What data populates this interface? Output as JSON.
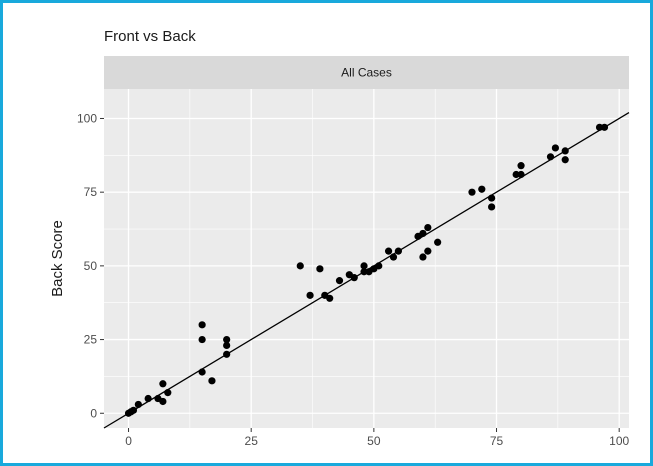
{
  "chart_data": {
    "type": "scatter",
    "title": "Front vs Back",
    "facet_label": "All Cases",
    "xlabel": "",
    "ylabel": "Back Score",
    "xlim": [
      -5,
      102
    ],
    "ylim": [
      -5,
      110
    ],
    "x_ticks": [
      0,
      25,
      50,
      75,
      100
    ],
    "y_ticks": [
      0,
      25,
      50,
      75,
      100
    ],
    "x_tick_labels": [
      "0",
      "25",
      "50",
      "75",
      "100"
    ],
    "y_tick_labels": [
      "0",
      "25",
      "50",
      "75",
      "100"
    ],
    "grid": true,
    "reference_line": {
      "slope": 1,
      "intercept": 0
    },
    "points": [
      [
        0,
        0
      ],
      [
        0.5,
        0.5
      ],
      [
        1,
        1
      ],
      [
        2,
        3
      ],
      [
        4,
        5
      ],
      [
        6,
        5
      ],
      [
        7,
        4
      ],
      [
        7,
        10
      ],
      [
        8,
        7
      ],
      [
        15,
        14
      ],
      [
        15,
        25
      ],
      [
        15,
        30
      ],
      [
        17,
        11
      ],
      [
        20,
        20
      ],
      [
        20,
        23
      ],
      [
        20,
        25
      ],
      [
        35,
        50
      ],
      [
        37,
        40
      ],
      [
        39,
        49
      ],
      [
        40,
        40
      ],
      [
        41,
        39
      ],
      [
        43,
        45
      ],
      [
        45,
        47
      ],
      [
        46,
        46
      ],
      [
        48,
        48
      ],
      [
        48,
        50
      ],
      [
        49,
        48
      ],
      [
        50,
        49
      ],
      [
        51,
        50
      ],
      [
        53,
        55
      ],
      [
        54,
        53
      ],
      [
        55,
        55
      ],
      [
        59,
        60
      ],
      [
        60,
        61
      ],
      [
        60,
        53
      ],
      [
        61,
        55
      ],
      [
        61,
        63
      ],
      [
        63,
        58
      ],
      [
        70,
        75
      ],
      [
        72,
        76
      ],
      [
        74,
        70
      ],
      [
        74,
        73
      ],
      [
        79,
        81
      ],
      [
        80,
        81
      ],
      [
        80,
        84
      ],
      [
        86,
        87
      ],
      [
        87,
        90
      ],
      [
        89,
        86
      ],
      [
        89,
        89
      ],
      [
        96,
        97
      ],
      [
        97,
        97
      ]
    ]
  },
  "colors": {
    "panel": "#ebebeb",
    "strip": "#d9d9d9",
    "grid": "#ffffff",
    "point": "#000000",
    "line": "#000000",
    "frame_border": "#18a9dc"
  }
}
